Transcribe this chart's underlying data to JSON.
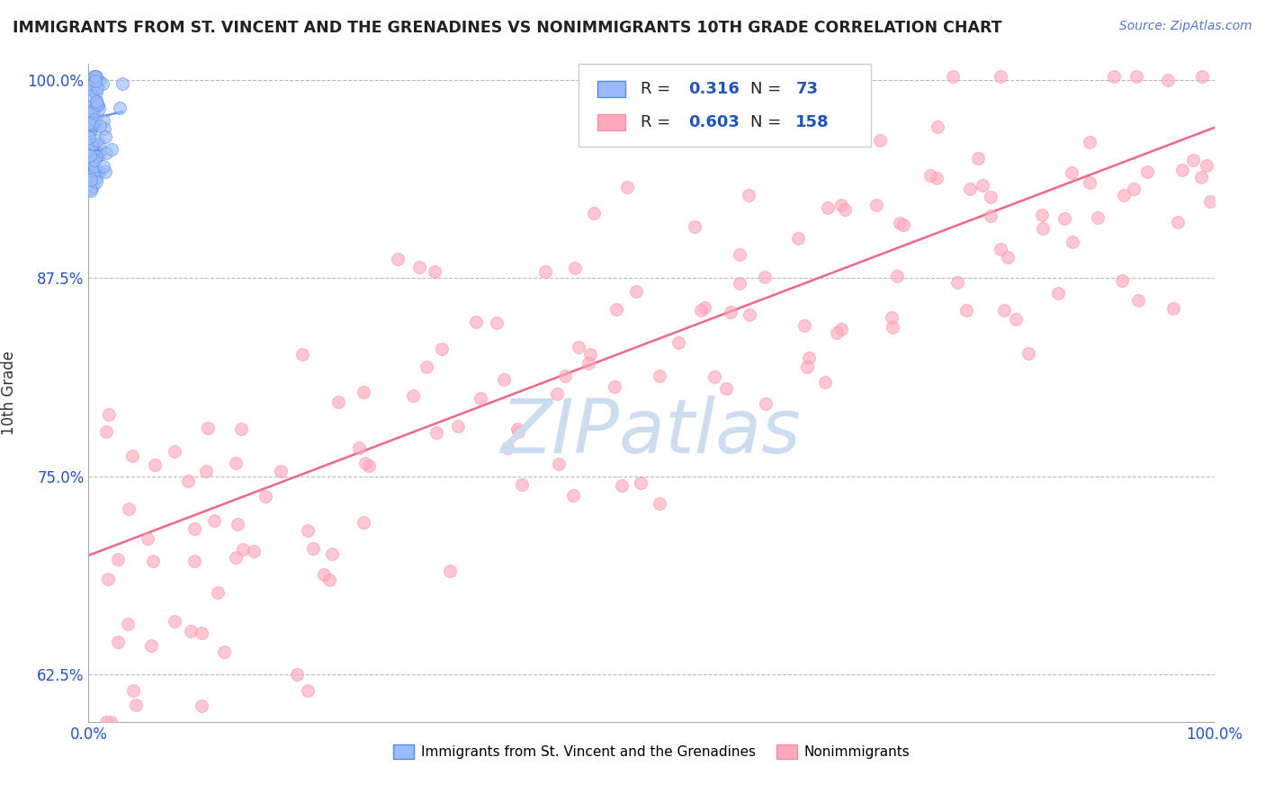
{
  "title": "IMMIGRANTS FROM ST. VINCENT AND THE GRENADINES VS NONIMMIGRANTS 10TH GRADE CORRELATION CHART",
  "source_text": "Source: ZipAtlas.com",
  "ylabel": "10th Grade",
  "xlim": [
    0.0,
    1.0
  ],
  "ylim": [
    0.595,
    1.01
  ],
  "yticks": [
    0.625,
    0.75,
    0.875,
    1.0
  ],
  "ytick_labels": [
    "62.5%",
    "75.0%",
    "87.5%",
    "100.0%"
  ],
  "xticks": [
    0.0,
    0.25,
    0.5,
    0.75,
    1.0
  ],
  "xtick_labels": [
    "0.0%",
    "",
    "",
    "",
    "100.0%"
  ],
  "blue_R": 0.316,
  "blue_N": 73,
  "pink_R": 0.603,
  "pink_N": 158,
  "blue_color": "#99BBFF",
  "blue_edge": "#5588DD",
  "pink_color": "#FFAABB",
  "pink_edge": "#FF88AA",
  "trend_pink_color": "#EE6688",
  "trend_blue_color": "#6699EE",
  "background_color": "#FFFFFF",
  "grid_color": "#BBBBBB",
  "title_color": "#222222",
  "source_color": "#5577CC",
  "watermark_color": "#CCDDF0",
  "scatter_size": 100,
  "scatter_alpha": 0.65,
  "pink_trend_x0": 0.0,
  "pink_trend_x1": 1.0,
  "pink_trend_y0": 0.7,
  "pink_trend_y1": 0.97,
  "blue_trend_x0": 0.0,
  "blue_trend_x1": 0.03,
  "blue_trend_y0": 0.975,
  "blue_trend_y1": 0.98
}
